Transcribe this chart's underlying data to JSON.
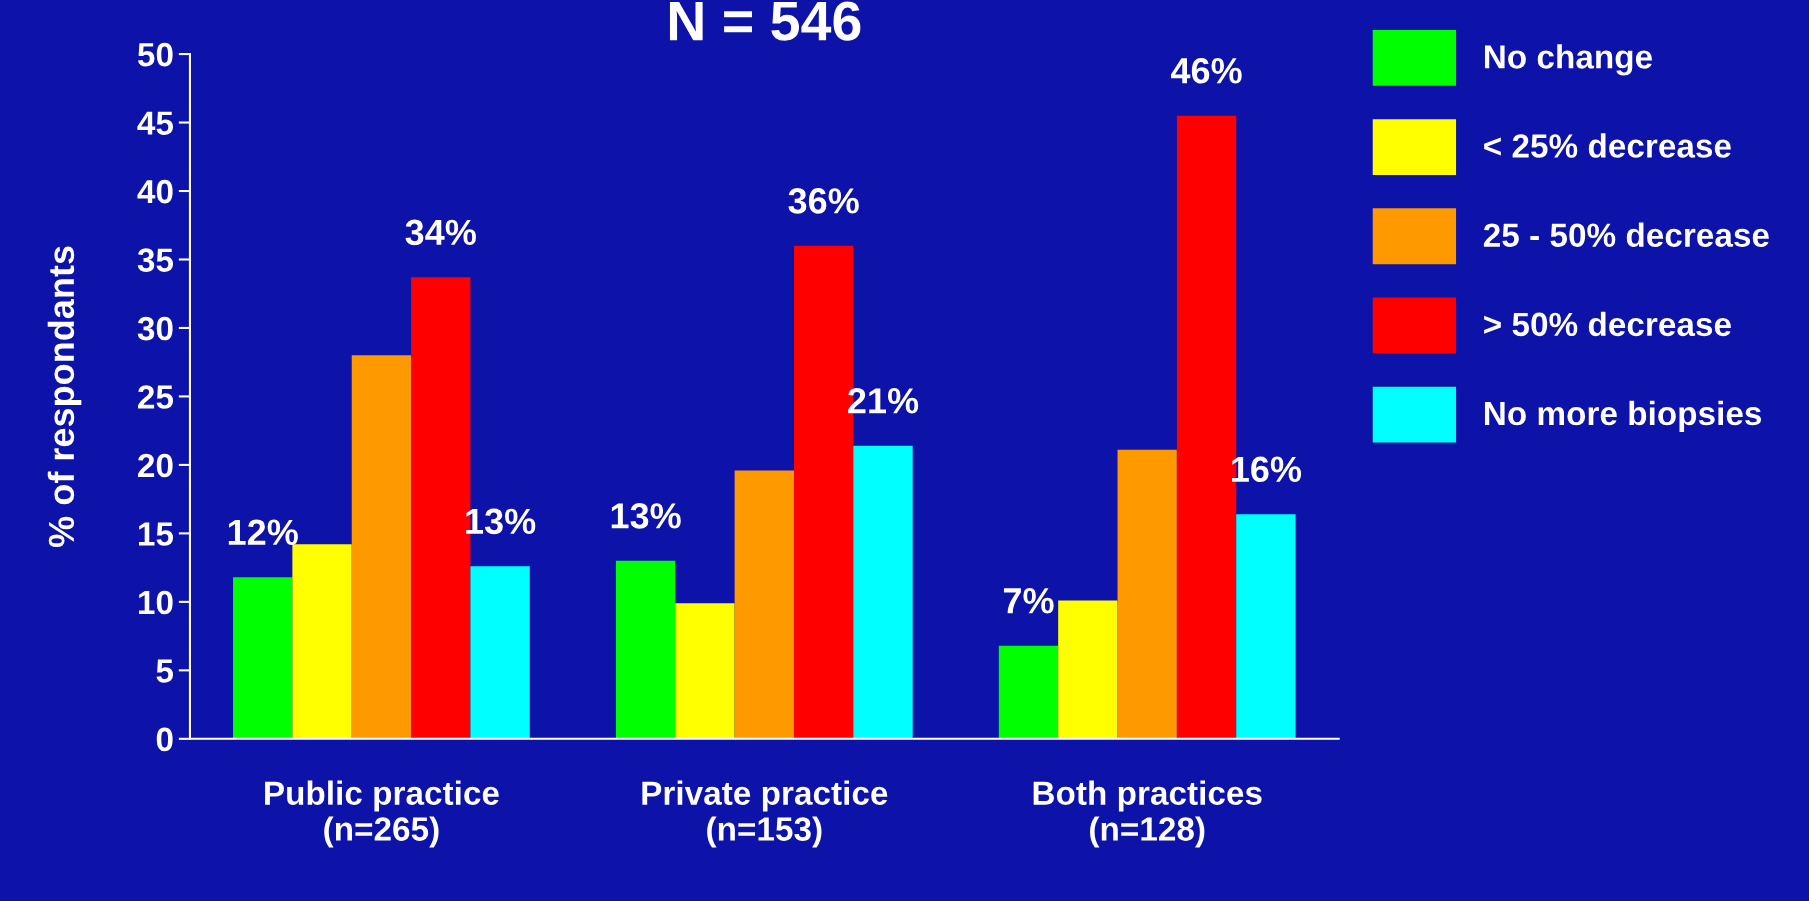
{
  "chart_data": {
    "type": "bar",
    "title": "N = 546",
    "ylabel": "% of respondants",
    "categories": [
      "Public practice\n(n=265)",
      "Private practice\n(n=153)",
      "Both practices\n(n=128)"
    ],
    "series": [
      {
        "name": "No change",
        "color": "#00ff00",
        "values": [
          11.8,
          13.0,
          6.8
        ],
        "value_labels": [
          "12%",
          "13%",
          "7%"
        ]
      },
      {
        "name": "< 25% decrease",
        "color": "#ffff00",
        "values": [
          14.2,
          9.9,
          10.1
        ],
        "value_labels": [
          null,
          null,
          null
        ]
      },
      {
        "name": "25 - 50% decrease",
        "color": "#ff9900",
        "values": [
          28.0,
          19.6,
          21.1
        ],
        "value_labels": [
          null,
          null,
          null
        ]
      },
      {
        "name": "> 50% decrease",
        "color": "#ff0000",
        "values": [
          33.7,
          36.0,
          45.5
        ],
        "value_labels": [
          "34%",
          "36%",
          "46%"
        ]
      },
      {
        "name": "No more biopsies",
        "color": "#00ffff",
        "values": [
          12.6,
          21.4,
          16.4
        ],
        "value_labels": [
          "13%",
          "21%",
          "16%"
        ]
      }
    ],
    "ylim": [
      0,
      50
    ],
    "yticks": [
      0,
      5,
      10,
      15,
      20,
      25,
      30,
      35,
      40,
      45,
      50
    ],
    "grid": false,
    "legend": "top right"
  }
}
